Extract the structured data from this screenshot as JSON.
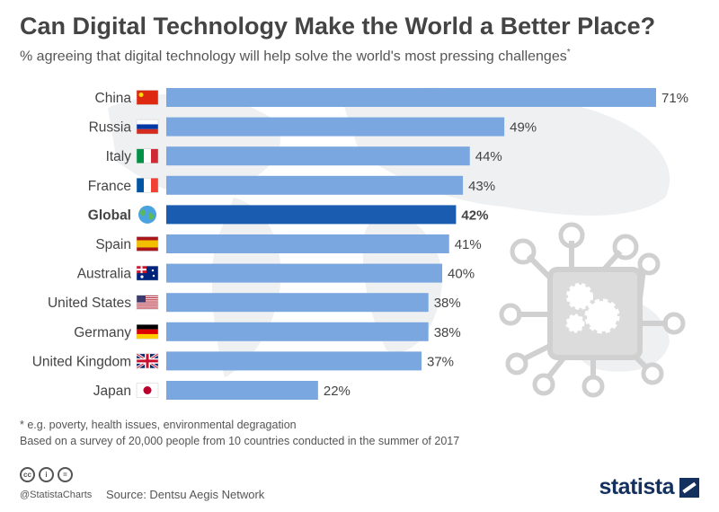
{
  "header": {
    "title": "Can Digital Technology Make the World a Better Place?",
    "subtitle": "% agreeing that digital technology will help solve the world's most pressing challenges",
    "subtitle_mark": "*"
  },
  "chart_data": {
    "type": "bar",
    "orientation": "horizontal",
    "categories": [
      "China",
      "Russia",
      "Italy",
      "France",
      "Global",
      "Spain",
      "Australia",
      "United States",
      "Germany",
      "United Kingdom",
      "Japan"
    ],
    "values": [
      71,
      49,
      44,
      43,
      42,
      41,
      40,
      38,
      38,
      37,
      22
    ],
    "value_labels": [
      "71%",
      "49%",
      "44%",
      "43%",
      "42%",
      "41%",
      "40%",
      "38%",
      "38%",
      "37%",
      "22%"
    ],
    "highlight": "Global",
    "xlim": [
      0,
      71
    ],
    "grid": false,
    "legend": "none",
    "colors": {
      "bar": "#7ba7e0",
      "highlight": "#1a5cb0",
      "text": "#444444"
    },
    "flag_icons": [
      "china-flag-icon",
      "russia-flag-icon",
      "italy-flag-icon",
      "france-flag-icon",
      "globe-icon",
      "spain-flag-icon",
      "australia-flag-icon",
      "usa-flag-icon",
      "germany-flag-icon",
      "uk-flag-icon",
      "japan-flag-icon"
    ]
  },
  "notes": {
    "footnote": "* e.g. poverty, health issues, environmental degragation",
    "survey": "Based on a survey of 20,000 people from 10 countries conducted in the summer of 2017"
  },
  "footer": {
    "handle": "@StatistaCharts",
    "source": "Source: Dentsu Aegis Network",
    "brand": "statista",
    "cc_icons": [
      "cc-icon",
      "attribution-icon",
      "no-derivatives-icon"
    ],
    "cc_glyphs": [
      "cc",
      "i",
      "="
    ]
  }
}
